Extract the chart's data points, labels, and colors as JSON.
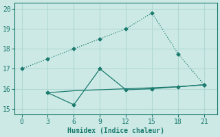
{
  "line1_x": [
    0,
    3,
    6,
    9,
    12,
    15,
    18,
    21
  ],
  "line1_y": [
    17.0,
    17.5,
    18.0,
    18.5,
    19.0,
    19.8,
    17.75,
    16.2
  ],
  "line2_x": [
    3,
    6,
    9,
    12,
    15,
    18,
    21
  ],
  "line2_y": [
    15.8,
    15.2,
    17.0,
    15.95,
    16.0,
    16.1,
    16.2
  ],
  "line3_x": [
    3,
    6,
    9,
    12,
    15,
    18,
    21
  ],
  "line3_y": [
    15.8,
    15.9,
    15.95,
    16.0,
    16.05,
    16.1,
    16.2
  ],
  "line_color": "#1a7a6e",
  "bg_color": "#cce9e5",
  "grid_color": "#b0d8d4",
  "xlabel": "Humidex (Indice chaleur)",
  "xlim": [
    -0.8,
    22.5
  ],
  "ylim": [
    14.7,
    20.3
  ],
  "xticks": [
    0,
    3,
    6,
    9,
    12,
    15,
    18,
    21
  ],
  "yticks": [
    15,
    16,
    17,
    18,
    19,
    20
  ]
}
